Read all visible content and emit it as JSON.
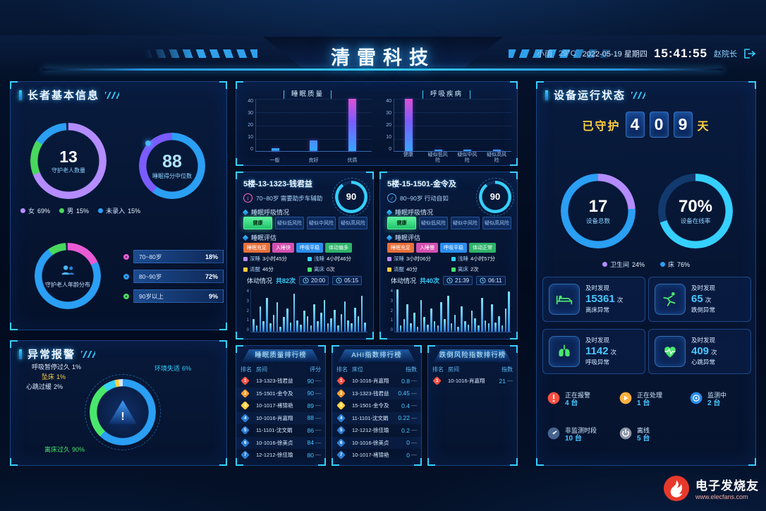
{
  "header": {
    "title": "清雷科技",
    "weather": "小雨",
    "temperature": "29°C",
    "date": "2022-05-19 星期四",
    "time": "15:41:55",
    "user": "赵院长"
  },
  "theme": {
    "accent": "#35d0ff",
    "rank_colors": [
      "#ff5042",
      "#ff9d2b",
      "#ffd13d",
      "#2a7fd4"
    ],
    "stat_dot_colors": [
      "#b48cff",
      "#35d0ff",
      "#ffd13d",
      "#49e86c"
    ]
  },
  "elder_panel": {
    "title": "长者基本信息",
    "guard_donut": {
      "value": "13",
      "label": "守护老人数量",
      "slices": [
        {
          "name": "女",
          "pct": 69,
          "display": "69%",
          "color": "#b48cff"
        },
        {
          "name": "男",
          "pct": 15,
          "display": "15%",
          "color": "#49d85e"
        },
        {
          "name": "未录入",
          "pct": 15,
          "display": "15%",
          "color": "#2a9ff4"
        }
      ]
    },
    "sleep_median": {
      "value": "88",
      "label": "睡眠得分中位数",
      "slices": [
        {
          "pct": 60,
          "color": "#2a9ff4"
        },
        {
          "pct": 40,
          "color": "#7a5cff"
        }
      ]
    },
    "age_donut": {
      "label": "守护老人年龄分布",
      "slices": [
        {
          "name": "70~80岁",
          "pct": 18,
          "display": "18%",
          "color": "#e95bd5"
        },
        {
          "name": "80~90岁",
          "pct": 72,
          "display": "72%",
          "color": "#2a9ff4"
        },
        {
          "name": "90岁以上",
          "pct": 9,
          "display": "9%",
          "color": "#49d85e"
        }
      ]
    }
  },
  "alarm_panel": {
    "title": "异常报警",
    "labels": [
      {
        "name": "呼吸暂停过久",
        "display": "1%",
        "color": "#dbe9ff"
      },
      {
        "name": "坠床",
        "display": "1%",
        "color": "#ffd13d"
      },
      {
        "name": "心跳过缓",
        "display": "2%",
        "color": "#dbe9ff"
      },
      {
        "name": "环境失适",
        "display": "6%",
        "color": "#35d0ff"
      },
      {
        "name": "离床过久",
        "display": "90%",
        "color": "#49e86c"
      }
    ],
    "donut_slices": [
      {
        "pct": 62,
        "color": "#2a9ff4"
      },
      {
        "pct": 28,
        "color": "#49e86c"
      },
      {
        "pct": 6,
        "color": "#35d0ff"
      },
      {
        "pct": 2,
        "color": "#ffd13d"
      },
      {
        "pct": 2,
        "color": "#dbe9ff"
      }
    ]
  },
  "quality_charts": {
    "sleep": {
      "title": "睡眠质量",
      "categories": [
        "一般",
        "良好",
        "优质"
      ],
      "values": [
        2,
        8,
        40
      ],
      "yticks": [
        "40",
        "30",
        "20",
        "10",
        "0"
      ],
      "ymax": 40
    },
    "breath": {
      "title": "呼吸疾病",
      "categories": [
        "健康",
        "疑似低风险",
        "疑似中风险",
        "疑似高风险"
      ],
      "values": [
        40,
        1,
        1,
        1
      ],
      "yticks": [
        "40",
        "30",
        "20",
        "10",
        "0"
      ],
      "ymax": 40
    }
  },
  "patients": [
    {
      "room": "5楼-13-1323-钱君益",
      "gender_icon": "♀",
      "age_note": "70~80岁 需要助步车辅助",
      "score": "90",
      "score_ring": [
        {
          "pct": 90,
          "color": "#35d0ff"
        }
      ],
      "breath_section": "睡眠呼吸情况",
      "breath_tags": [
        "健康",
        "疑似低风险",
        "疑似中风险",
        "疑似高风险"
      ],
      "assess_section": "睡眠评估",
      "assess_tags": [
        {
          "text": "睡眠充足",
          "color": "#e8703a"
        },
        {
          "text": "入睡快",
          "color": "#d44fb0"
        },
        {
          "text": "呼吸平稳",
          "color": "#2a8ef0"
        },
        {
          "text": "体动偏多",
          "color": "#2fb36a"
        }
      ],
      "sleep_stats": [
        {
          "label": "深睡",
          "value": "3小时45分"
        },
        {
          "label": "浅睡",
          "value": "4小时46分"
        },
        {
          "label": "清醒",
          "value": "46分"
        },
        {
          "label": "离床",
          "value": "0次"
        }
      ],
      "motion_label": "体动情况",
      "motion_total": "共82次",
      "time_start": "20:00",
      "time_end": "05:15",
      "motion_ticks": [
        "4",
        "3",
        "2",
        "1",
        "0"
      ],
      "motion_bars": [
        1.2,
        0.6,
        2.4,
        1,
        3.2,
        0.8,
        1.6,
        2.8,
        0.5,
        1.4,
        2.2,
        0.9,
        3.6,
        1.1,
        0.7,
        2,
        1.5,
        0.6,
        2.6,
        1,
        1.8,
        3,
        0.8,
        1.3,
        2.1,
        0.6,
        1.7,
        2.9,
        1.1,
        0.8,
        2.3,
        1.5,
        3.4,
        0.9
      ]
    },
    {
      "room": "5楼-15-1501-金令及",
      "gender_icon": "♂",
      "age_note": "80~90岁 行动自如",
      "score": "90",
      "score_ring": [
        {
          "pct": 90,
          "color": "#35d0ff"
        }
      ],
      "breath_section": "睡眠呼吸情况",
      "breath_tags": [
        "健康",
        "疑似低风险",
        "疑似中风险",
        "疑似高风险"
      ],
      "assess_section": "睡眠评估",
      "assess_tags": [
        {
          "text": "睡眠充足",
          "color": "#e8703a"
        },
        {
          "text": "入睡慢",
          "color": "#d44fb0"
        },
        {
          "text": "呼吸平稳",
          "color": "#2a8ef0"
        },
        {
          "text": "体动正常",
          "color": "#2fb36a"
        }
      ],
      "sleep_stats": [
        {
          "label": "深睡",
          "value": "3小时06分"
        },
        {
          "label": "浅睡",
          "value": "4小时57分"
        },
        {
          "label": "清醒",
          "value": "40分"
        },
        {
          "label": "离床",
          "value": "2次"
        }
      ],
      "motion_label": "体动情况",
      "motion_total": "共40次",
      "time_start": "21:39",
      "time_end": "06:11",
      "motion_ticks": [
        "4",
        "3",
        "2",
        "1",
        "0"
      ],
      "motion_bars": [
        4,
        0.6,
        1.2,
        2.6,
        0.8,
        1.8,
        0.5,
        3,
        1.4,
        0.7,
        2.2,
        1,
        0.6,
        2.8,
        1.2,
        3.4,
        0.8,
        1.6,
        0.5,
        2.4,
        1,
        0.7,
        2,
        1.3,
        0.6,
        3.2,
        1.1,
        0.8,
        2.6,
        0.9,
        1.5,
        0.6,
        2.2,
        3.8
      ]
    }
  ],
  "rank_lists": [
    {
      "title": "睡眠质量排行榜",
      "columns": [
        "排名",
        "房间",
        "评分"
      ],
      "rows": [
        {
          "rank": "1",
          "room": "13-1323-钱君益",
          "value": "90",
          "trend": "—"
        },
        {
          "rank": "2",
          "room": "15-1501-金令及",
          "value": "90",
          "trend": "—"
        },
        {
          "rank": "3",
          "room": "10-1017-褚锦艳",
          "value": "89",
          "trend": "—"
        },
        {
          "rank": "4",
          "room": "10-1016-肖嘉翔",
          "value": "88",
          "trend": "—"
        },
        {
          "rank": "5",
          "room": "11-1101-沈文娟",
          "value": "86",
          "trend": "—"
        },
        {
          "rank": "6",
          "room": "10-1016-徐美贞",
          "value": "84",
          "trend": "—"
        },
        {
          "rank": "7",
          "room": "12-1212-徐佳瑜",
          "value": "80",
          "trend": "—"
        }
      ]
    },
    {
      "title": "AHI指数排行榜",
      "columns": [
        "排名",
        "床位",
        "指数"
      ],
      "rows": [
        {
          "rank": "1",
          "room": "10-1016-肖嘉翔",
          "value": "0.8",
          "trend": "—"
        },
        {
          "rank": "2",
          "room": "13-1323-钱君益",
          "value": "0.45",
          "trend": "—"
        },
        {
          "rank": "3",
          "room": "15-1501-金令及",
          "value": "0.4",
          "trend": "—"
        },
        {
          "rank": "4",
          "room": "11-1101-沈文娟",
          "value": "0.22",
          "trend": "—"
        },
        {
          "rank": "5",
          "room": "12-1212-徐佳瑜",
          "value": "0.2",
          "trend": "—"
        },
        {
          "rank": "6",
          "room": "10-1016-徐美贞",
          "value": "0",
          "trend": "—"
        },
        {
          "rank": "7",
          "room": "10-1017-褚锦艳",
          "value": "0",
          "trend": "—"
        }
      ]
    },
    {
      "title": "跌倒风险指数排行榜",
      "columns": [
        "排名",
        "房间",
        "指数"
      ],
      "rows": [
        {
          "rank": "1",
          "room": "10-1016-肖嘉翔",
          "value": "21",
          "trend": "—"
        }
      ]
    }
  ],
  "device_panel": {
    "title": "设备运行状态",
    "guard_label": "已守护",
    "guard_digits": [
      "4",
      "0",
      "9"
    ],
    "guard_unit": "天",
    "total_donut": {
      "value": "17",
      "label": "设备总数",
      "slices": [
        {
          "pct": 24,
          "color": "#b48cff"
        },
        {
          "pct": 76,
          "color": "#2a9ff4"
        }
      ]
    },
    "online_donut": {
      "value": "70%",
      "label": "设备在线率",
      "slices": [
        {
          "pct": 70,
          "color": "#35d0ff"
        },
        {
          "pct": 30,
          "color": "#123a6e"
        }
      ]
    },
    "legend": [
      {
        "name": "卫生间",
        "display": "24%",
        "color": "#b48cff"
      },
      {
        "name": "床",
        "display": "76%",
        "color": "#2a9ff4"
      }
    ],
    "stat_cards": [
      {
        "prefix": "及时发现",
        "value": "15361",
        "unit": "次",
        "label": "离床异常",
        "icon": "bed"
      },
      {
        "prefix": "及时发现",
        "value": "65",
        "unit": "次",
        "label": "跌倒异常",
        "icon": "fall"
      },
      {
        "prefix": "及时发现",
        "value": "1142",
        "unit": "次",
        "label": "呼吸异常",
        "icon": "lungs"
      },
      {
        "prefix": "及时发现",
        "value": "409",
        "unit": "次",
        "label": "心跳异常",
        "icon": "heart"
      }
    ],
    "status_chips": [
      {
        "label": "正在报警",
        "count": "4 台",
        "color": "#ff5042",
        "icon": "alarm"
      },
      {
        "label": "正在处理",
        "count": "1 台",
        "color": "#ffb13d",
        "icon": "processing"
      },
      {
        "label": "监测中",
        "count": "2 台",
        "color": "#2a8ef0",
        "icon": "monitoring"
      },
      {
        "label": "非监测时段",
        "count": "10 台",
        "color": "#46648f",
        "icon": "offtime"
      },
      {
        "label": "离线",
        "count": "5 台",
        "color": "#8a94a6",
        "icon": "offline"
      }
    ]
  },
  "watermark": {
    "brand": "电子发烧友",
    "site": "www.elecfans.com"
  }
}
